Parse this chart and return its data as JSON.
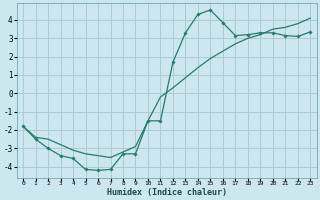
{
  "xlabel": "Humidex (Indice chaleur)",
  "bg_color": "#cce8ee",
  "grid_color": "#aaccd4",
  "line_color": "#2a7a6a",
  "xlim": [
    -0.5,
    23.5
  ],
  "ylim": [
    -4.6,
    4.9
  ],
  "xticks": [
    0,
    1,
    2,
    3,
    4,
    5,
    6,
    7,
    8,
    9,
    10,
    11,
    12,
    13,
    14,
    15,
    16,
    17,
    18,
    19,
    20,
    21,
    22,
    23
  ],
  "yticks": [
    -4,
    -3,
    -2,
    -1,
    0,
    1,
    2,
    3,
    4
  ],
  "line1_x": [
    0,
    1,
    2,
    3,
    4,
    5,
    6,
    7,
    8,
    9,
    10,
    11,
    12,
    13,
    14,
    15,
    16,
    17,
    18,
    19,
    20,
    21,
    22,
    23
  ],
  "line1_y": [
    -1.8,
    -2.5,
    -3.0,
    -3.4,
    -3.55,
    -4.15,
    -4.2,
    -4.15,
    -3.3,
    -3.3,
    -1.5,
    -1.5,
    1.7,
    3.3,
    4.3,
    4.55,
    3.85,
    3.15,
    3.2,
    3.3,
    3.3,
    3.15,
    3.1,
    3.35
  ],
  "line2_x": [
    0,
    1,
    2,
    3,
    4,
    5,
    6,
    7,
    8,
    9,
    10,
    11,
    12,
    13,
    14,
    15,
    16,
    17,
    18,
    19,
    20,
    21,
    22,
    23
  ],
  "line2_y": [
    -1.8,
    -2.4,
    -2.5,
    -2.8,
    -3.1,
    -3.3,
    -3.4,
    -3.5,
    -3.2,
    -2.9,
    -1.5,
    -0.2,
    0.3,
    0.85,
    1.4,
    1.9,
    2.3,
    2.7,
    3.0,
    3.2,
    3.5,
    3.6,
    3.8,
    4.1
  ]
}
